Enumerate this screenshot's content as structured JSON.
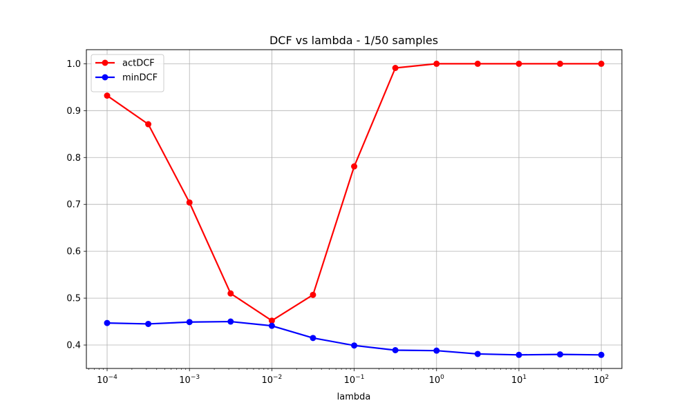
{
  "chart_data": {
    "type": "line",
    "title": "DCF vs lambda - 1/50 samples",
    "xlabel": "lambda",
    "ylabel": "",
    "xscale": "log",
    "xlim": [
      5.6e-05,
      178
    ],
    "ylim": [
      0.35,
      1.03
    ],
    "grid": true,
    "legend_position": "top-left",
    "x": [
      0.0001,
      0.000316,
      0.001,
      0.00316,
      0.01,
      0.0316,
      0.1,
      0.316,
      1,
      3.16,
      10,
      31.6,
      100
    ],
    "x_ticks": [
      {
        "value": 0.0001,
        "base": "10",
        "exp": "−4"
      },
      {
        "value": 0.001,
        "base": "10",
        "exp": "−3"
      },
      {
        "value": 0.01,
        "base": "10",
        "exp": "−2"
      },
      {
        "value": 0.1,
        "base": "10",
        "exp": "−1"
      },
      {
        "value": 1,
        "base": "10",
        "exp": "0"
      },
      {
        "value": 10,
        "base": "10",
        "exp": "1"
      },
      {
        "value": 100,
        "base": "10",
        "exp": "2"
      }
    ],
    "y_ticks": [
      0.4,
      0.5,
      0.6,
      0.7,
      0.8,
      0.9,
      1.0
    ],
    "y_tick_labels": [
      "0.4",
      "0.5",
      "0.6",
      "0.7",
      "0.8",
      "0.9",
      "1.0"
    ],
    "series": [
      {
        "name": "actDCF",
        "color": "#ff0000",
        "values": [
          0.932,
          0.871,
          0.704,
          0.51,
          0.452,
          0.507,
          0.781,
          0.991,
          1.0,
          1.0,
          1.0,
          1.0,
          1.0
        ]
      },
      {
        "name": "minDCF",
        "color": "#0000ff",
        "values": [
          0.447,
          0.445,
          0.449,
          0.45,
          0.441,
          0.415,
          0.399,
          0.389,
          0.388,
          0.381,
          0.379,
          0.38,
          0.379
        ]
      }
    ]
  }
}
